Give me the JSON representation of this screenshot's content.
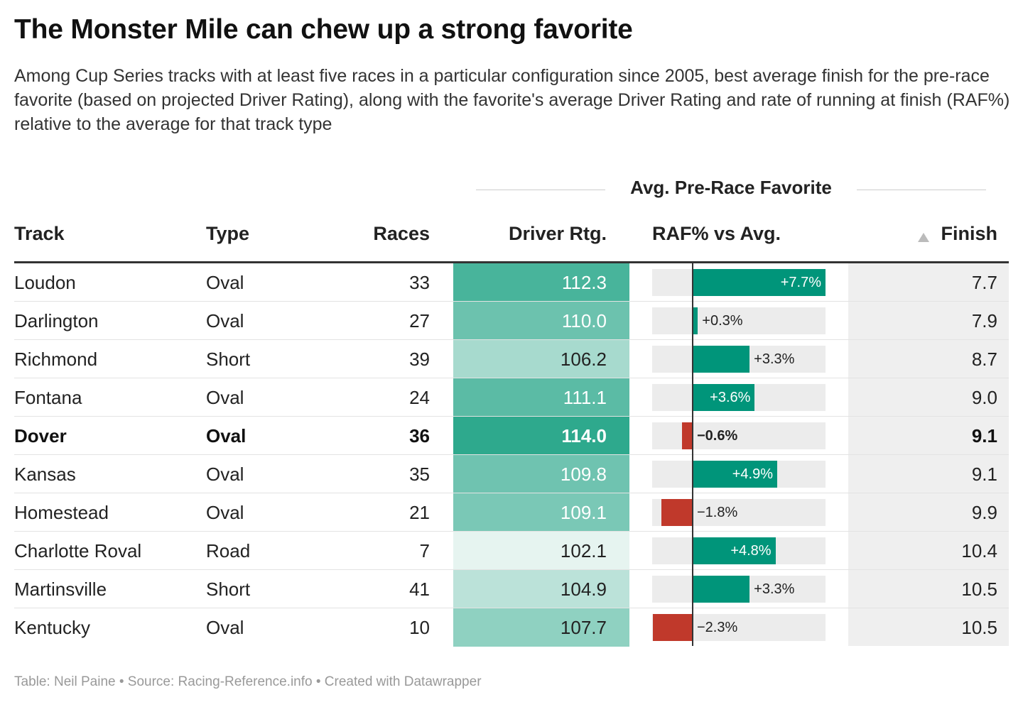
{
  "title": "The Monster Mile can chew up a strong favorite",
  "subtitle": "Among Cup Series tracks with at least five races in a particular configuration since 2005, best average finish for the pre-race favorite (based on projected Driver Rating), along with the favorite's average Driver Rating and rate of running at finish (RAF%) relative to the average for that track type",
  "group_header": "Avg. Pre-Race Favorite",
  "columns": {
    "track": "Track",
    "type": "Type",
    "races": "Races",
    "driver_rating": "Driver Rtg.",
    "raf": "RAF% vs Avg.",
    "finish": "Finish"
  },
  "sort_icon": "sort-ascending-triangle-icon",
  "footer": "Table: Neil Paine • Source: Racing-Reference.info • Created with Datawrapper",
  "colors": {
    "positive_bar": "#00957a",
    "negative_bar": "#c0392b",
    "rating_scale_low": "#e6f4f0",
    "rating_scale_high": "#2ea98d",
    "finish_column_bg": "#efefef"
  },
  "chart_data": {
    "type": "table",
    "raf_domain": [
      -2.3,
      7.7
    ],
    "rating_domain": [
      102.1,
      114.0
    ],
    "highlighted_row": "Dover",
    "rows": [
      {
        "track": "Loudon",
        "type": "Oval",
        "races": "33",
        "driver_rating": 112.3,
        "raf": 7.7,
        "raf_label": "+7.7%",
        "finish": "7.7",
        "bold": false
      },
      {
        "track": "Darlington",
        "type": "Oval",
        "races": "27",
        "driver_rating": 110.0,
        "raf": 0.3,
        "raf_label": "+0.3%",
        "finish": "7.9",
        "bold": false
      },
      {
        "track": "Richmond",
        "type": "Short",
        "races": "39",
        "driver_rating": 106.2,
        "raf": 3.3,
        "raf_label": "+3.3%",
        "finish": "8.7",
        "bold": false
      },
      {
        "track": "Fontana",
        "type": "Oval",
        "races": "24",
        "driver_rating": 111.1,
        "raf": 3.6,
        "raf_label": "+3.6%",
        "finish": "9.0",
        "bold": false
      },
      {
        "track": "Dover",
        "type": "Oval",
        "races": "36",
        "driver_rating": 114.0,
        "raf": -0.6,
        "raf_label": "−0.6%",
        "finish": "9.1",
        "bold": true
      },
      {
        "track": "Kansas",
        "type": "Oval",
        "races": "35",
        "driver_rating": 109.8,
        "raf": 4.9,
        "raf_label": "+4.9%",
        "finish": "9.1",
        "bold": false
      },
      {
        "track": "Homestead",
        "type": "Oval",
        "races": "21",
        "driver_rating": 109.1,
        "raf": -1.8,
        "raf_label": "−1.8%",
        "finish": "9.9",
        "bold": false
      },
      {
        "track": "Charlotte Roval",
        "type": "Road",
        "races": "7",
        "driver_rating": 102.1,
        "raf": 4.8,
        "raf_label": "+4.8%",
        "finish": "10.4",
        "bold": false
      },
      {
        "track": "Martinsville",
        "type": "Short",
        "races": "41",
        "driver_rating": 104.9,
        "raf": 3.3,
        "raf_label": "+3.3%",
        "finish": "10.5",
        "bold": false
      },
      {
        "track": "Kentucky",
        "type": "Oval",
        "races": "10",
        "driver_rating": 107.7,
        "raf": -2.3,
        "raf_label": "−2.3%",
        "finish": "10.5",
        "bold": false
      }
    ]
  }
}
